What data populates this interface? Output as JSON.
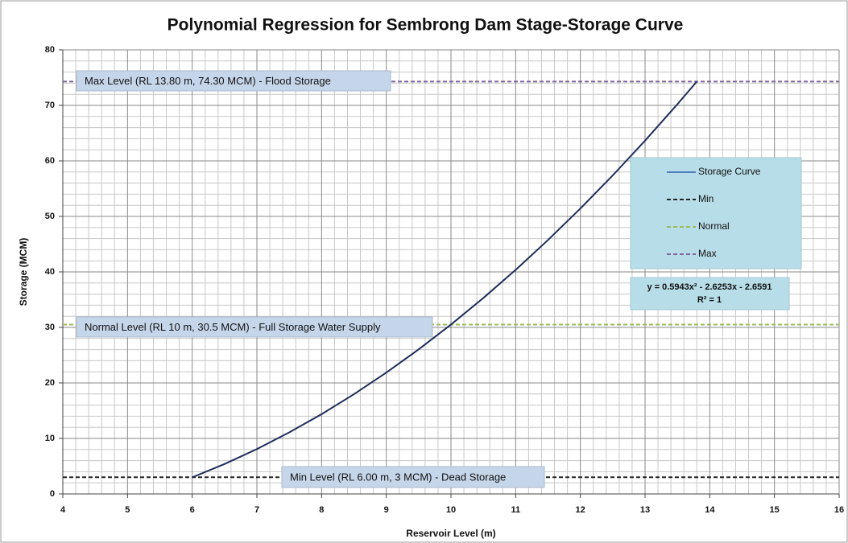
{
  "chart_data": {
    "type": "line",
    "title": "Polynomial Regression for Sembrong Dam Stage-Storage Curve",
    "x_label": "Reservoir Level (m)",
    "y_label": "Storage (MCM)",
    "xlim": [
      4,
      16
    ],
    "ylim": [
      0,
      80
    ],
    "xticks": [
      4,
      5,
      6,
      7,
      8,
      9,
      10,
      11,
      12,
      13,
      14,
      15,
      16
    ],
    "yticks": [
      0,
      10,
      20,
      30,
      40,
      50,
      60,
      70,
      80
    ],
    "grid": true,
    "minor_grid": true,
    "legend": "right",
    "series": [
      {
        "name": "Storage Curve",
        "color": "#1f2d5c",
        "legend_color": "#4f81bd",
        "dash": false,
        "x": [
          6,
          6.5,
          7,
          7.5,
          8,
          8.5,
          9,
          9.5,
          10,
          10.5,
          11,
          11.5,
          12,
          12.5,
          13,
          13.5,
          13.8
        ],
        "values": [
          2.98,
          5.39,
          8.08,
          11.08,
          14.37,
          17.96,
          21.85,
          26.04,
          30.52,
          35.3,
          40.37,
          45.75,
          51.42,
          57.38,
          63.65,
          70.21,
          74.29
        ]
      },
      {
        "name": "Min",
        "color": "#222222",
        "legend_color": "#222222",
        "dash": true,
        "x": [
          4,
          16
        ],
        "values": [
          3,
          3
        ]
      },
      {
        "name": "Normal",
        "color": "#9bbb59",
        "legend_color": "#9bbb59",
        "dash": true,
        "x": [
          4,
          16
        ],
        "values": [
          30.5,
          30.5
        ]
      },
      {
        "name": "Max",
        "color": "#8064a2",
        "legend_color": "#8064a2",
        "dash": true,
        "x": [
          4,
          16
        ],
        "values": [
          74.3,
          74.3
        ]
      }
    ],
    "annotations": [
      "Max Level (RL 13.80 m, 74.30 MCM) - Flood Storage",
      "Normal Level (RL 10 m, 30.5 MCM) - Full Storage Water Supply",
      "Min Level (RL 6.00 m, 3 MCM) - Dead Storage"
    ],
    "equation": [
      "y = 0.5943x² - 2.6253x - 2.6591",
      "R² = 1"
    ]
  }
}
